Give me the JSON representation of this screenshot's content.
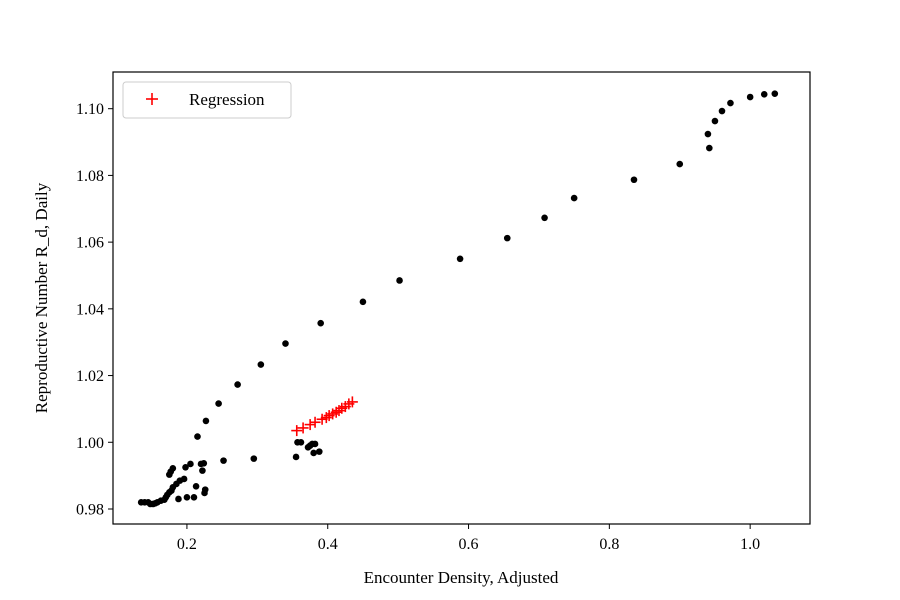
{
  "chart_data": {
    "type": "scatter",
    "xlabel": "Encounter Density, Adjusted",
    "ylabel": "Reproductive Number R_d, Daily",
    "xlim": [
      0.095,
      1.085
    ],
    "ylim": [
      0.9755,
      1.111
    ],
    "xticks": [
      {
        "value": 0.2,
        "label": "0.2"
      },
      {
        "value": 0.4,
        "label": "0.4"
      },
      {
        "value": 0.6,
        "label": "0.6"
      },
      {
        "value": 0.8,
        "label": "0.8"
      },
      {
        "value": 1.0,
        "label": "1.0"
      }
    ],
    "yticks": [
      {
        "value": 0.98,
        "label": "0.98"
      },
      {
        "value": 1.0,
        "label": "1.00"
      },
      {
        "value": 1.02,
        "label": "1.02"
      },
      {
        "value": 1.04,
        "label": "1.04"
      },
      {
        "value": 1.06,
        "label": "1.06"
      },
      {
        "value": 1.08,
        "label": "1.08"
      },
      {
        "value": 1.1,
        "label": "1.10"
      }
    ],
    "grid": false,
    "legend": {
      "placement": "top-left",
      "entries": [
        "Regression"
      ]
    },
    "colors": {
      "data": "#000000",
      "regression": "#ff0000"
    },
    "series": [
      {
        "marker": "dot",
        "points": [
          [
            0.135,
            0.982
          ],
          [
            0.14,
            0.982
          ],
          [
            0.145,
            0.982
          ],
          [
            0.148,
            0.9815
          ],
          [
            0.152,
            0.9815
          ],
          [
            0.155,
            0.9817
          ],
          [
            0.158,
            0.982
          ],
          [
            0.163,
            0.9825
          ],
          [
            0.168,
            0.9828
          ],
          [
            0.17,
            0.9835
          ],
          [
            0.172,
            0.9842
          ],
          [
            0.175,
            0.985
          ],
          [
            0.178,
            0.9855
          ],
          [
            0.18,
            0.9865
          ],
          [
            0.185,
            0.9875
          ],
          [
            0.19,
            0.9885
          ],
          [
            0.196,
            0.989
          ],
          [
            0.198,
            0.9925
          ],
          [
            0.205,
            0.9935
          ],
          [
            0.21,
            0.9835
          ],
          [
            0.213,
            0.9868
          ],
          [
            0.215,
            1.0017
          ],
          [
            0.22,
            0.9935
          ],
          [
            0.222,
            0.9915
          ],
          [
            0.224,
            0.9937
          ],
          [
            0.225,
            0.9848
          ],
          [
            0.226,
            0.9858
          ],
          [
            0.227,
            1.0064
          ],
          [
            0.175,
            0.9903
          ],
          [
            0.177,
            0.9912
          ],
          [
            0.18,
            0.9922
          ],
          [
            0.188,
            0.983
          ],
          [
            0.2,
            0.9835
          ],
          [
            0.245,
            1.0116
          ],
          [
            0.252,
            0.9945
          ],
          [
            0.272,
            1.0173
          ],
          [
            0.295,
            0.9951
          ],
          [
            0.305,
            1.0233
          ],
          [
            0.34,
            1.0296
          ],
          [
            0.355,
            0.9956
          ],
          [
            0.357,
            1.0
          ],
          [
            0.362,
            1.0
          ],
          [
            0.372,
            0.9985
          ],
          [
            0.375,
            0.999
          ],
          [
            0.378,
            0.9995
          ],
          [
            0.38,
            0.9968
          ],
          [
            0.382,
            0.9995
          ],
          [
            0.388,
            0.9972
          ],
          [
            0.39,
            1.0357
          ],
          [
            0.45,
            1.0421
          ],
          [
            0.502,
            1.0485
          ],
          [
            0.588,
            1.055
          ],
          [
            0.655,
            1.0612
          ],
          [
            0.708,
            1.0673
          ],
          [
            0.75,
            1.0732
          ],
          [
            0.835,
            1.0787
          ],
          [
            0.9,
            1.0834
          ],
          [
            0.94,
            1.0924
          ],
          [
            0.942,
            1.0882
          ],
          [
            0.95,
            1.0963
          ],
          [
            0.96,
            1.0993
          ],
          [
            0.972,
            1.1017
          ],
          [
            1.0,
            1.1035
          ],
          [
            1.02,
            1.1043
          ],
          [
            1.035,
            1.1045
          ]
        ]
      },
      {
        "name": "Regression",
        "marker": "plus",
        "points": [
          [
            0.356,
            1.0035
          ],
          [
            0.365,
            1.0043
          ],
          [
            0.375,
            1.0053
          ],
          [
            0.382,
            1.006
          ],
          [
            0.392,
            1.0069
          ],
          [
            0.398,
            1.0074
          ],
          [
            0.402,
            1.008
          ],
          [
            0.407,
            1.0085
          ],
          [
            0.412,
            1.009
          ],
          [
            0.416,
            1.0095
          ],
          [
            0.42,
            1.0102
          ],
          [
            0.425,
            1.0107
          ],
          [
            0.43,
            1.0115
          ],
          [
            0.435,
            1.0121
          ]
        ]
      }
    ]
  }
}
